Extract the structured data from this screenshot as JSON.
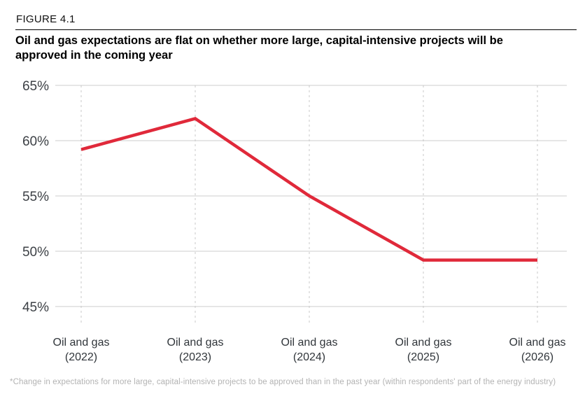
{
  "header": {
    "figure_label": "FIGURE 4.1",
    "title": "Oil and gas expectations are flat on whether more large, capital-intensive projects will be approved in the coming year"
  },
  "chart_data": {
    "type": "line",
    "categories": [
      "Oil and gas (2022)",
      "Oil and gas (2023)",
      "Oil and gas (2024)",
      "Oil and gas (2025)",
      "Oil and gas (2026)"
    ],
    "series": [
      {
        "name": "Oil and gas",
        "values": [
          59.2,
          62,
          55,
          49.2,
          49.2
        ]
      }
    ],
    "title": "Oil and gas expectations are flat on whether more large, capital-intensive projects will be approved in the coming year",
    "xlabel": "",
    "ylabel": "",
    "ylim": [
      45,
      65
    ],
    "yticks": [
      45,
      50,
      55,
      60,
      65
    ],
    "ytick_suffix": "%",
    "grid": "horizontal solid gridlines; vertical dashed lines at each category",
    "legend": "none"
  },
  "footnote": "*Change in expectations for more large, capital-intensive projects to be approved than in the past year (within respondents' part of the energy industry)",
  "colors": {
    "line": "#e0293a",
    "gridline": "#cccccc",
    "tick_dash": "#c8c8c8",
    "axis_text": "#3d4146",
    "footnote_text": "#b3b3b3",
    "title_text": "#000000"
  }
}
